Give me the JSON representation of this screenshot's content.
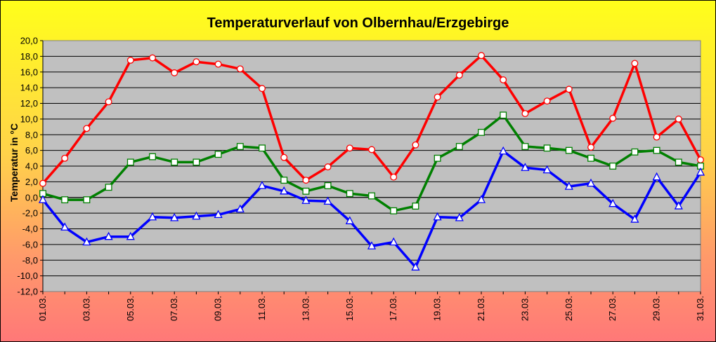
{
  "chart_data": {
    "type": "line",
    "title": "Temperaturverlauf von Olbernhau/Erzgebirge",
    "xlabel": "",
    "ylabel": "Temperatur in °C",
    "ylim": [
      -12,
      20
    ],
    "ytick_step": 2,
    "ytick_labels": [
      "20,0",
      "18,0",
      "16,0",
      "14,0",
      "12,0",
      "10,0",
      "8,0",
      "6,0",
      "4,0",
      "2,0",
      "0,0",
      "-2,0",
      "-4,0",
      "-6,0",
      "-8,0",
      "-10,0",
      "-12,0"
    ],
    "ytick_values": [
      20,
      18,
      16,
      14,
      12,
      10,
      8,
      6,
      4,
      2,
      0,
      -2,
      -4,
      -6,
      -8,
      -10,
      -12
    ],
    "x": [
      "01.03.",
      "02.03.",
      "03.03.",
      "04.03.",
      "05.03.",
      "06.03.",
      "07.03.",
      "08.03.",
      "09.03.",
      "10.03.",
      "11.03.",
      "12.03.",
      "13.03.",
      "14.03.",
      "15.03.",
      "16.03.",
      "17.03.",
      "18.03.",
      "19.03.",
      "20.03.",
      "21.03.",
      "22.03.",
      "23.03.",
      "24.03.",
      "25.03.",
      "26.03.",
      "27.03.",
      "28.03.",
      "29.03.",
      "30.03.",
      "31.03."
    ],
    "x_tick_labels": [
      "01.03.",
      "03.03.",
      "05.03.",
      "07.03.",
      "09.03.",
      "11.03.",
      "13.03.",
      "15.03.",
      "17.03.",
      "19.03.",
      "21.03.",
      "23.03.",
      "25.03.",
      "27.03.",
      "29.03.",
      "31.03."
    ],
    "grid": true,
    "legend": "none",
    "plot_background": "#c0c0c0",
    "series": [
      {
        "color": "#ff0000",
        "marker": "circle",
        "values": [
          1.8,
          5.0,
          8.8,
          12.2,
          17.5,
          17.8,
          15.9,
          17.3,
          17.0,
          16.4,
          13.9,
          5.1,
          2.2,
          3.9,
          6.3,
          6.1,
          2.6,
          6.7,
          12.8,
          15.6,
          18.1,
          15.0,
          10.7,
          12.3,
          13.8,
          6.4,
          10.1,
          17.1,
          7.7,
          10.0,
          4.8
        ]
      },
      {
        "color": "#008000",
        "marker": "square",
        "values": [
          0.5,
          -0.3,
          -0.3,
          1.3,
          4.5,
          5.2,
          4.5,
          4.5,
          5.5,
          6.5,
          6.3,
          2.2,
          0.8,
          1.5,
          0.5,
          0.2,
          -1.7,
          -1.1,
          5.0,
          6.5,
          8.3,
          10.5,
          6.5,
          6.3,
          6.0,
          5.0,
          4.0,
          5.8,
          6.0,
          4.5,
          4.0
        ]
      },
      {
        "color": "#0000ff",
        "marker": "triangle",
        "values": [
          -0.3,
          -3.8,
          -5.7,
          -5.0,
          -5.0,
          -2.5,
          -2.6,
          -2.4,
          -2.2,
          -1.5,
          1.5,
          0.8,
          -0.4,
          -0.5,
          -3.0,
          -6.2,
          -5.7,
          -8.9,
          -2.5,
          -2.6,
          -0.3,
          5.9,
          3.8,
          3.5,
          1.4,
          1.8,
          -0.8,
          -2.8,
          2.6,
          -1.1,
          3.2
        ]
      }
    ]
  }
}
